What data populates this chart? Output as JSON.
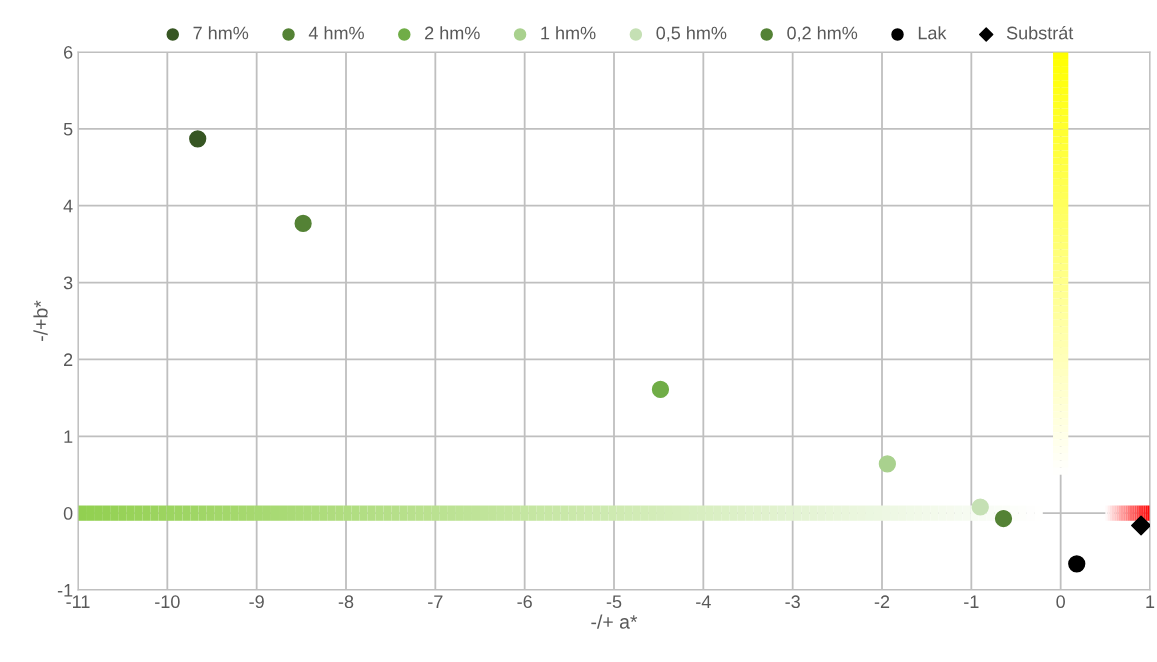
{
  "chart_data": {
    "type": "scatter",
    "xlabel": "-/+ a*",
    "ylabel": "-/+b*",
    "xlim": [
      -11,
      1
    ],
    "xticks": [
      -11,
      -10,
      -9,
      -8,
      -7,
      -6,
      -5,
      -4,
      -3,
      -2,
      -1,
      0,
      1
    ],
    "ylim": [
      -1,
      6
    ],
    "yticks": [
      -1,
      0,
      1,
      2,
      3,
      4,
      5,
      6
    ],
    "grid": true,
    "legend": "top",
    "marker": "circle",
    "series": [
      {
        "name": "7 hm%",
        "color": "#375623",
        "x": [
          -9.66
        ],
        "values": [
          4.87
        ]
      },
      {
        "name": "4 hm%",
        "color": "#548235",
        "x": [
          -8.48
        ],
        "values": [
          3.77
        ]
      },
      {
        "name": "2 hm%",
        "color": "#70ad47",
        "x": [
          -4.48
        ],
        "values": [
          1.61
        ]
      },
      {
        "name": "1 hm%",
        "color": "#a9d18e",
        "x": [
          -1.94
        ],
        "values": [
          0.64
        ]
      },
      {
        "name": "0,5 hm%",
        "color": "#c5e0b4",
        "x": [
          -0.9
        ],
        "values": [
          0.08
        ]
      },
      {
        "name": "0,2 hm%",
        "color": "#548235",
        "x": [
          -0.64
        ],
        "values": [
          -0.07
        ]
      },
      {
        "name": "Lak",
        "color": "#000000",
        "x": [
          0.18
        ],
        "values": [
          -0.66
        ]
      },
      {
        "name": "Substrát",
        "color": "#000000",
        "marker": "diamond",
        "x": [
          0.9
        ],
        "values": [
          -0.16
        ]
      }
    ]
  }
}
